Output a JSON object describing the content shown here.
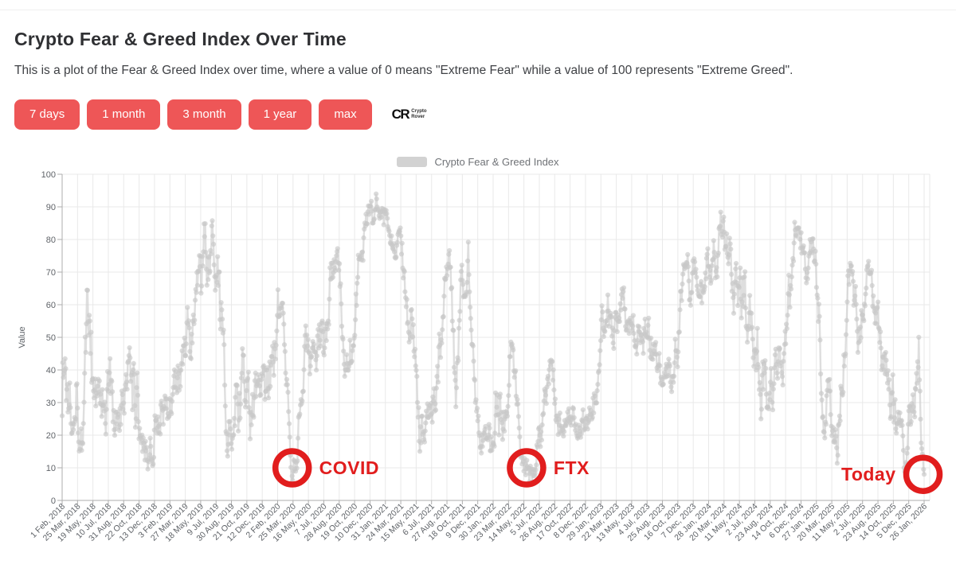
{
  "header": {
    "title": "Crypto Fear & Greed Index Over Time",
    "subtitle": "This is a plot of the Fear & Greed Index over time, where a value of 0 means \"Extreme Fear\" while a value of 100 represents \"Extreme Greed\".",
    "range_buttons": [
      "7 days",
      "1 month",
      "3 month",
      "1 year",
      "max"
    ],
    "logo": {
      "mark": "CR",
      "line1": "Crypto",
      "line2": "Rover"
    }
  },
  "colors": {
    "accent_button": "#ee5657",
    "annotation_red": "#e11d1d",
    "series_gray": "#c8c8c8",
    "grid": "#e9e9e9",
    "axis": "#adadad",
    "tick_text": "#5f6368",
    "title_text": "#2f3033",
    "legend_text": "#6f7276"
  },
  "chart_data": {
    "type": "line",
    "legend": "Crypto Fear & Greed Index",
    "legend_position": "top",
    "ylabel": "Value",
    "ylim": [
      0,
      100
    ],
    "grid": true,
    "y_ticks": [
      0,
      10,
      20,
      30,
      40,
      50,
      60,
      70,
      80,
      90,
      100
    ],
    "x_range": [
      "2018-02-01",
      "2026-01-26"
    ],
    "x_ticks": [
      "1 Feb, 2018",
      "25 Mar, 2018",
      "19 May, 2018",
      "10 Jul, 2018",
      "31 Aug, 2018",
      "22 Oct, 2018",
      "13 Dec, 2018",
      "3 Feb, 2019",
      "27 Mar, 2019",
      "18 May, 2019",
      "9 Jul, 2019",
      "30 Aug, 2019",
      "21 Oct, 2019",
      "12 Dec, 2019",
      "2 Feb, 2020",
      "25 Mar, 2020",
      "16 May, 2020",
      "7 Jul, 2020",
      "28 Aug, 2020",
      "19 Oct, 2020",
      "10 Dec, 2020",
      "31 Jan, 2021",
      "24 Mar, 2021",
      "15 May, 2021",
      "6 Jul, 2021",
      "27 Aug, 2021",
      "18 Oct, 2021",
      "9 Dec, 2021",
      "30 Jan, 2022",
      "23 Mar, 2022",
      "14 May, 2022",
      "5 Jul, 2022",
      "26 Aug, 2022",
      "17 Oct, 2022",
      "8 Dec, 2022",
      "29 Jan, 2023",
      "22 Mar, 2023",
      "13 May, 2023",
      "4 Jul, 2023",
      "25 Aug, 2023",
      "16 Oct, 2023",
      "7 Dec, 2023",
      "28 Jan, 2024",
      "20 Mar, 2024",
      "11 May, 2024",
      "2 Jul, 2024",
      "23 Aug, 2024",
      "14 Oct, 2024",
      "6 Dec, 2024",
      "27 Jan, 2025",
      "20 Mar, 2025",
      "11 May, 2025",
      "2 Jul, 2025",
      "23 Aug, 2025",
      "14 Oct, 2025",
      "5 Dec, 2025",
      "26 Jan, 2026"
    ],
    "series_note": "Daily index values (0-100) estimated from plot; stored as envelope anchors [date, mean, half-range] that the renderer interpolates.",
    "series_envelope": [
      [
        "2018-02-01",
        40,
        32
      ],
      [
        "2018-02-20",
        35,
        22
      ],
      [
        "2018-03-15",
        42,
        16
      ],
      [
        "2018-04-05",
        28,
        14
      ],
      [
        "2018-04-28",
        48,
        18
      ],
      [
        "2018-05-20",
        35,
        16
      ],
      [
        "2018-06-12",
        25,
        12
      ],
      [
        "2018-07-08",
        32,
        14
      ],
      [
        "2018-08-05",
        16,
        11
      ],
      [
        "2018-09-01",
        28,
        12
      ],
      [
        "2018-10-01",
        36,
        16
      ],
      [
        "2018-10-25",
        28,
        10
      ],
      [
        "2018-11-20",
        18,
        10
      ],
      [
        "2018-12-15",
        24,
        10
      ],
      [
        "2019-01-15",
        28,
        10
      ],
      [
        "2019-02-15",
        34,
        10
      ],
      [
        "2019-03-15",
        40,
        9
      ],
      [
        "2019-04-10",
        56,
        12
      ],
      [
        "2019-05-10",
        60,
        14
      ],
      [
        "2019-06-05",
        72,
        16
      ],
      [
        "2019-06-25",
        86,
        9
      ],
      [
        "2019-07-15",
        52,
        22
      ],
      [
        "2019-08-10",
        26,
        12
      ],
      [
        "2019-09-10",
        30,
        10
      ],
      [
        "2019-10-12",
        32,
        14
      ],
      [
        "2019-11-05",
        30,
        12
      ],
      [
        "2019-12-01",
        26,
        10
      ],
      [
        "2020-01-05",
        40,
        12
      ],
      [
        "2020-02-01",
        52,
        11
      ],
      [
        "2020-02-25",
        42,
        14
      ],
      [
        "2020-03-18",
        11,
        4
      ],
      [
        "2020-04-10",
        20,
        9
      ],
      [
        "2020-05-05",
        42,
        11
      ],
      [
        "2020-06-01",
        46,
        9
      ],
      [
        "2020-07-01",
        44,
        11
      ],
      [
        "2020-07-28",
        62,
        11
      ],
      [
        "2020-08-18",
        77,
        6
      ],
      [
        "2020-09-10",
        46,
        8
      ],
      [
        "2020-10-10",
        56,
        11
      ],
      [
        "2020-11-05",
        76,
        9
      ],
      [
        "2020-11-28",
        88,
        5
      ],
      [
        "2020-12-20",
        90,
        5
      ],
      [
        "2021-01-12",
        89,
        6
      ],
      [
        "2021-02-12",
        88,
        6
      ],
      [
        "2021-03-10",
        76,
        7
      ],
      [
        "2021-04-05",
        72,
        8
      ],
      [
        "2021-04-26",
        58,
        14
      ],
      [
        "2021-05-15",
        26,
        14
      ],
      [
        "2021-06-10",
        18,
        8
      ],
      [
        "2021-07-05",
        22,
        9
      ],
      [
        "2021-07-26",
        38,
        14
      ],
      [
        "2021-08-12",
        66,
        9
      ],
      [
        "2021-09-04",
        74,
        5
      ],
      [
        "2021-09-26",
        32,
        10
      ],
      [
        "2021-10-16",
        74,
        9
      ],
      [
        "2021-11-12",
        70,
        10
      ],
      [
        "2021-12-06",
        28,
        9
      ],
      [
        "2022-01-10",
        19,
        8
      ],
      [
        "2022-02-12",
        36,
        14
      ],
      [
        "2022-03-10",
        26,
        8
      ],
      [
        "2022-03-29",
        48,
        9
      ],
      [
        "2022-04-20",
        30,
        8
      ],
      [
        "2022-05-12",
        13,
        6
      ],
      [
        "2022-06-14",
        9,
        4
      ],
      [
        "2022-07-16",
        22,
        8
      ],
      [
        "2022-08-12",
        36,
        8
      ],
      [
        "2022-09-12",
        23,
        6
      ],
      [
        "2022-10-12",
        23,
        5
      ],
      [
        "2022-11-10",
        23,
        5
      ],
      [
        "2022-12-10",
        27,
        4
      ],
      [
        "2023-01-08",
        34,
        8
      ],
      [
        "2023-01-30",
        54,
        8
      ],
      [
        "2023-02-20",
        56,
        8
      ],
      [
        "2023-03-15",
        50,
        11
      ],
      [
        "2023-04-12",
        60,
        8
      ],
      [
        "2023-05-10",
        50,
        6
      ],
      [
        "2023-06-10",
        46,
        8
      ],
      [
        "2023-07-06",
        57,
        8
      ],
      [
        "2023-08-12",
        40,
        6
      ],
      [
        "2023-09-10",
        39,
        6
      ],
      [
        "2023-10-12",
        46,
        9
      ],
      [
        "2023-11-06",
        66,
        8
      ],
      [
        "2023-12-06",
        69,
        8
      ],
      [
        "2024-01-10",
        63,
        8
      ],
      [
        "2024-02-10",
        72,
        8
      ],
      [
        "2024-03-06",
        82,
        8
      ],
      [
        "2024-03-26",
        76,
        8
      ],
      [
        "2024-04-16",
        68,
        8
      ],
      [
        "2024-05-10",
        62,
        10
      ],
      [
        "2024-06-12",
        52,
        14
      ],
      [
        "2024-07-10",
        42,
        14
      ],
      [
        "2024-08-06",
        32,
        14
      ],
      [
        "2024-09-02",
        32,
        10
      ],
      [
        "2024-10-02",
        46,
        11
      ],
      [
        "2024-10-22",
        62,
        11
      ],
      [
        "2024-11-12",
        82,
        8
      ],
      [
        "2024-11-24",
        90,
        5
      ],
      [
        "2024-12-12",
        80,
        8
      ],
      [
        "2025-01-06",
        72,
        8
      ],
      [
        "2025-01-22",
        72,
        8
      ],
      [
        "2025-02-10",
        46,
        12
      ],
      [
        "2025-02-26",
        26,
        10
      ],
      [
        "2025-03-12",
        26,
        10
      ],
      [
        "2025-04-08",
        20,
        9
      ],
      [
        "2025-04-26",
        42,
        10
      ],
      [
        "2025-05-12",
        66,
        8
      ],
      [
        "2025-05-26",
        70,
        6
      ],
      [
        "2025-06-16",
        56,
        10
      ],
      [
        "2025-07-12",
        66,
        8
      ],
      [
        "2025-07-24",
        70,
        5
      ],
      [
        "2025-08-12",
        56,
        10
      ],
      [
        "2025-09-02",
        46,
        9
      ],
      [
        "2025-09-22",
        42,
        10
      ],
      [
        "2025-10-16",
        30,
        12
      ],
      [
        "2025-11-06",
        21,
        8
      ],
      [
        "2025-11-20",
        14,
        6
      ],
      [
        "2025-12-06",
        22,
        8
      ],
      [
        "2025-12-22",
        28,
        9
      ],
      [
        "2026-01-08",
        42,
        14
      ],
      [
        "2026-01-16",
        16,
        7
      ],
      [
        "2026-01-26",
        9,
        3
      ]
    ],
    "annotations": [
      {
        "label": "COVID",
        "date": "2020-03-20",
        "value": 10,
        "side": "right"
      },
      {
        "label": "FTX",
        "date": "2022-05-22",
        "value": 10,
        "side": "right"
      },
      {
        "label": "Today",
        "date": "2026-01-22",
        "value": 8,
        "side": "left"
      }
    ]
  }
}
